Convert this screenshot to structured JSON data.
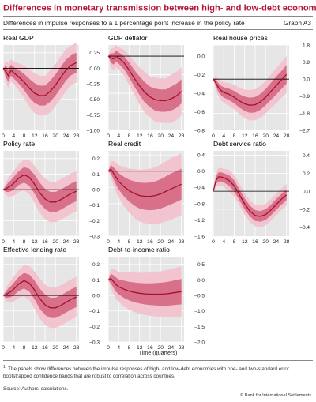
{
  "header": {
    "title": "Differences in monetary transmission between high- and low-debt economies",
    "title_sup": "1",
    "subtitle": "Differences in impulse responses to a 1 percentage point increase in the policy rate",
    "graph_id": "Graph A3"
  },
  "common_xlabel": "Time (quarters)",
  "footnote": {
    "marker": "1",
    "text": "The panels show differences between the impulse responses of high- and low-debt economies with one- and two-standard error bootstrapped confidence bands that are robust to correlation across countries."
  },
  "source": "Source: Authors' calculations.",
  "copyright": "© Bank for International Settlements",
  "colors": {
    "outer_band": "#f2c4cf",
    "inner_band": "#d8708a",
    "line": "#a3112f",
    "zero_line": "#000000",
    "panel_bg": "#e6e6e6",
    "title_red": "#b5163c"
  },
  "chart_data": [
    {
      "type": "line",
      "title": "Real GDP",
      "x_ticks": [
        "0",
        "4",
        "8",
        "12",
        "16",
        "20",
        "24",
        "28"
      ],
      "y_ticks": [
        "0.25",
        "0.00",
        "–0.25",
        "–0.50",
        "–0.75",
        "–1.00"
      ],
      "ylim": [
        -1.0,
        0.375
      ],
      "x": [
        0,
        1,
        2,
        3,
        4,
        6,
        8,
        10,
        12,
        14,
        16,
        18,
        20,
        22,
        24,
        26,
        28
      ],
      "series": [
        {
          "role": "point_estimate",
          "values": [
            0,
            -0.05,
            -0.12,
            -0.03,
            -0.07,
            -0.14,
            -0.22,
            -0.32,
            -0.4,
            -0.44,
            -0.44,
            -0.37,
            -0.27,
            -0.15,
            -0.03,
            0.05,
            0.09
          ]
        }
      ],
      "inner_band": {
        "lower": [
          0,
          -0.14,
          -0.22,
          -0.12,
          -0.16,
          -0.25,
          -0.35,
          -0.47,
          -0.56,
          -0.6,
          -0.6,
          -0.54,
          -0.44,
          -0.32,
          -0.2,
          -0.11,
          -0.07
        ],
        "upper": [
          0,
          0.04,
          -0.02,
          0.06,
          0.02,
          -0.03,
          -0.09,
          -0.17,
          -0.24,
          -0.28,
          -0.28,
          -0.2,
          -0.1,
          0.02,
          0.14,
          0.21,
          0.25
        ]
      },
      "outer_band": {
        "lower": [
          0,
          -0.23,
          -0.32,
          -0.21,
          -0.25,
          -0.36,
          -0.48,
          -0.62,
          -0.72,
          -0.76,
          -0.76,
          -0.71,
          -0.61,
          -0.49,
          -0.37,
          -0.27,
          -0.23
        ],
        "upper": [
          0,
          0.13,
          0.08,
          0.15,
          0.11,
          0.08,
          0.04,
          -0.02,
          -0.08,
          -0.12,
          -0.12,
          -0.03,
          0.07,
          0.19,
          0.31,
          0.37,
          0.41
        ]
      }
    },
    {
      "type": "line",
      "title": "GDP deflator",
      "x_ticks": [
        "0",
        "4",
        "8",
        "12",
        "16",
        "20",
        "24",
        "28"
      ],
      "y_ticks": [
        "0.0",
        "–0.2",
        "–0.4",
        "–0.6",
        "–0.8"
      ],
      "ylim": [
        -0.8,
        0.12
      ],
      "x": [
        0,
        1,
        2,
        3,
        4,
        6,
        8,
        10,
        12,
        14,
        16,
        18,
        20,
        22,
        24,
        26,
        28
      ],
      "series": [
        {
          "role": "point_estimate",
          "values": [
            0,
            -0.02,
            -0.03,
            0.0,
            -0.02,
            -0.07,
            -0.15,
            -0.24,
            -0.32,
            -0.39,
            -0.44,
            -0.47,
            -0.48,
            -0.48,
            -0.46,
            -0.43,
            -0.38
          ]
        }
      ],
      "inner_band": {
        "lower": [
          0,
          -0.07,
          -0.09,
          -0.06,
          -0.08,
          -0.14,
          -0.23,
          -0.33,
          -0.42,
          -0.5,
          -0.55,
          -0.59,
          -0.6,
          -0.6,
          -0.59,
          -0.56,
          -0.51
        ],
        "upper": [
          0,
          0.03,
          0.03,
          0.06,
          0.04,
          0.0,
          -0.07,
          -0.15,
          -0.22,
          -0.28,
          -0.33,
          -0.35,
          -0.36,
          -0.36,
          -0.33,
          -0.3,
          -0.25
        ]
      },
      "outer_band": {
        "lower": [
          0,
          -0.12,
          -0.15,
          -0.12,
          -0.14,
          -0.21,
          -0.31,
          -0.42,
          -0.52,
          -0.61,
          -0.66,
          -0.71,
          -0.72,
          -0.72,
          -0.72,
          -0.69,
          -0.64
        ],
        "upper": [
          0,
          0.08,
          0.09,
          0.12,
          0.1,
          0.07,
          0.01,
          -0.06,
          -0.12,
          -0.17,
          -0.22,
          -0.23,
          -0.24,
          -0.24,
          -0.2,
          -0.17,
          -0.12
        ]
      }
    },
    {
      "type": "line",
      "title": "Real house prices",
      "x_ticks": [
        "0",
        "4",
        "8",
        "12",
        "16",
        "20",
        "24",
        "28"
      ],
      "y_ticks": [
        "1.8",
        "0.9",
        "0.0",
        "–0.9",
        "–1.8",
        "–2.7"
      ],
      "ylim": [
        -2.7,
        1.8
      ],
      "x": [
        0,
        1,
        2,
        3,
        4,
        6,
        8,
        10,
        12,
        14,
        16,
        18,
        20,
        22,
        24,
        26,
        28
      ],
      "series": [
        {
          "role": "point_estimate",
          "values": [
            0,
            -0.2,
            -0.45,
            -0.6,
            -0.7,
            -0.8,
            -0.95,
            -1.15,
            -1.3,
            -1.38,
            -1.35,
            -1.2,
            -0.95,
            -0.65,
            -0.35,
            -0.05,
            0.25
          ]
        }
      ],
      "inner_band": {
        "lower": [
          0,
          -0.38,
          -0.68,
          -0.85,
          -0.97,
          -1.1,
          -1.28,
          -1.5,
          -1.68,
          -1.78,
          -1.76,
          -1.62,
          -1.38,
          -1.1,
          -0.82,
          -0.52,
          -0.24
        ],
        "upper": [
          0,
          -0.02,
          -0.22,
          -0.35,
          -0.43,
          -0.5,
          -0.62,
          -0.8,
          -0.92,
          -0.98,
          -0.94,
          -0.78,
          -0.52,
          -0.2,
          0.12,
          0.42,
          0.74
        ]
      },
      "outer_band": {
        "lower": [
          0,
          -0.56,
          -0.9,
          -1.1,
          -1.24,
          -1.4,
          -1.6,
          -1.85,
          -2.05,
          -2.18,
          -2.17,
          -2.04,
          -1.81,
          -1.54,
          -1.28,
          -0.98,
          -0.72
        ],
        "upper": [
          0,
          0.16,
          0.0,
          -0.1,
          -0.16,
          -0.2,
          -0.3,
          -0.45,
          -0.55,
          -0.58,
          -0.53,
          -0.36,
          -0.09,
          0.24,
          0.58,
          0.88,
          1.22
        ]
      }
    },
    {
      "type": "line",
      "title": "Policy rate",
      "x_ticks": [
        "0",
        "4",
        "8",
        "12",
        "16",
        "20",
        "24",
        "28"
      ],
      "y_ticks": [
        "0.2",
        "0.1",
        "0.0",
        "–0.1",
        "–0.2",
        "–0.3"
      ],
      "ylim": [
        -0.3,
        0.25
      ],
      "x": [
        0,
        1,
        2,
        3,
        4,
        6,
        8,
        10,
        12,
        14,
        16,
        18,
        20,
        22,
        24,
        26,
        28
      ],
      "series": [
        {
          "role": "point_estimate",
          "values": [
            0,
            0.005,
            0.015,
            0.025,
            0.04,
            0.075,
            0.095,
            0.08,
            0.035,
            -0.02,
            -0.06,
            -0.08,
            -0.08,
            -0.065,
            -0.045,
            -0.025,
            -0.01
          ]
        }
      ],
      "inner_band": {
        "lower": [
          0,
          -0.015,
          -0.015,
          -0.01,
          0.0,
          0.03,
          0.045,
          0.025,
          -0.025,
          -0.085,
          -0.125,
          -0.145,
          -0.145,
          -0.13,
          -0.11,
          -0.09,
          -0.075
        ],
        "upper": [
          0,
          0.025,
          0.045,
          0.06,
          0.08,
          0.12,
          0.145,
          0.135,
          0.095,
          0.045,
          0.005,
          -0.015,
          -0.015,
          0.0,
          0.02,
          0.04,
          0.055
        ]
      },
      "outer_band": {
        "lower": [
          0,
          -0.035,
          -0.045,
          -0.045,
          -0.04,
          -0.015,
          -0.005,
          -0.03,
          -0.085,
          -0.15,
          -0.19,
          -0.21,
          -0.21,
          -0.195,
          -0.175,
          -0.155,
          -0.14
        ],
        "upper": [
          0,
          0.045,
          0.075,
          0.095,
          0.12,
          0.165,
          0.195,
          0.19,
          0.155,
          0.11,
          0.07,
          0.05,
          0.05,
          0.065,
          0.085,
          0.105,
          0.12
        ]
      }
    },
    {
      "type": "line",
      "title": "Real credit",
      "x_ticks": [
        "0",
        "4",
        "8",
        "12",
        "16",
        "20",
        "24",
        "28"
      ],
      "y_ticks": [
        "0.4",
        "0.0",
        "–0.4",
        "–0.8",
        "–1.2",
        "–1.6"
      ],
      "ylim": [
        -1.6,
        0.5
      ],
      "x": [
        0,
        1,
        2,
        3,
        4,
        6,
        8,
        10,
        12,
        14,
        16,
        18,
        20,
        22,
        24,
        26,
        28
      ],
      "series": [
        {
          "role": "point_estimate",
          "values": [
            0,
            0.05,
            -0.05,
            -0.15,
            -0.25,
            -0.38,
            -0.48,
            -0.55,
            -0.6,
            -0.62,
            -0.62,
            -0.6,
            -0.56,
            -0.5,
            -0.44,
            -0.38,
            -0.32
          ]
        }
      ],
      "inner_band": {
        "lower": [
          0,
          -0.05,
          -0.2,
          -0.33,
          -0.45,
          -0.62,
          -0.75,
          -0.85,
          -0.92,
          -0.95,
          -0.96,
          -0.95,
          -0.92,
          -0.87,
          -0.82,
          -0.76,
          -0.7
        ],
        "upper": [
          0,
          0.15,
          0.1,
          0.03,
          -0.05,
          -0.14,
          -0.21,
          -0.25,
          -0.28,
          -0.29,
          -0.28,
          -0.25,
          -0.2,
          -0.13,
          -0.06,
          0.0,
          0.06
        ]
      },
      "outer_band": {
        "lower": [
          0,
          -0.15,
          -0.35,
          -0.51,
          -0.65,
          -0.86,
          -1.02,
          -1.15,
          -1.24,
          -1.28,
          -1.3,
          -1.3,
          -1.28,
          -1.24,
          -1.2,
          -1.14,
          -1.08
        ],
        "upper": [
          0,
          0.25,
          0.25,
          0.21,
          0.15,
          0.1,
          0.06,
          0.05,
          0.04,
          0.04,
          0.06,
          0.1,
          0.16,
          0.24,
          0.32,
          0.38,
          0.44
        ]
      }
    },
    {
      "type": "line",
      "title": "Debt service ratio",
      "x_ticks": [
        "0",
        "4",
        "8",
        "12",
        "16",
        "20",
        "24",
        "28"
      ],
      "y_ticks": [
        "0.4",
        "0.2",
        "0.0",
        "–0.2",
        "–0.4"
      ],
      "ylim": [
        -0.5,
        0.45
      ],
      "x": [
        0,
        1,
        2,
        3,
        4,
        6,
        8,
        10,
        12,
        14,
        16,
        18,
        20,
        22,
        24,
        26,
        28
      ],
      "series": [
        {
          "role": "point_estimate",
          "values": [
            0,
            0.12,
            0.16,
            0.16,
            0.15,
            0.12,
            0.06,
            -0.04,
            -0.14,
            -0.22,
            -0.27,
            -0.28,
            -0.26,
            -0.21,
            -0.15,
            -0.09,
            -0.04
          ]
        }
      ],
      "inner_band": {
        "lower": [
          0,
          0.08,
          0.11,
          0.11,
          0.1,
          0.06,
          0.0,
          -0.1,
          -0.2,
          -0.28,
          -0.33,
          -0.34,
          -0.32,
          -0.27,
          -0.21,
          -0.15,
          -0.1
        ],
        "upper": [
          0,
          0.16,
          0.21,
          0.21,
          0.2,
          0.18,
          0.12,
          0.02,
          -0.08,
          -0.16,
          -0.21,
          -0.22,
          -0.2,
          -0.15,
          -0.09,
          -0.03,
          0.02
        ]
      },
      "outer_band": {
        "lower": [
          0,
          0.04,
          0.06,
          0.06,
          0.05,
          0.0,
          -0.06,
          -0.16,
          -0.26,
          -0.34,
          -0.39,
          -0.4,
          -0.38,
          -0.33,
          -0.27,
          -0.21,
          -0.16
        ],
        "upper": [
          0,
          0.2,
          0.26,
          0.26,
          0.25,
          0.24,
          0.18,
          0.08,
          -0.02,
          -0.1,
          -0.15,
          -0.16,
          -0.14,
          -0.09,
          -0.03,
          0.03,
          0.08
        ]
      }
    },
    {
      "type": "line",
      "title": "Effective lending rate",
      "x_ticks": [
        "0",
        "4",
        "8",
        "12",
        "16",
        "20",
        "24",
        "28"
      ],
      "y_ticks": [
        "0.2",
        "0.1",
        "0.0",
        "–0.1",
        "–0.2",
        "–0.3"
      ],
      "ylim": [
        -0.3,
        0.25
      ],
      "x": [
        0,
        1,
        2,
        3,
        4,
        6,
        8,
        10,
        12,
        14,
        16,
        18,
        20,
        22,
        24,
        26,
        28
      ],
      "series": [
        {
          "role": "point_estimate",
          "values": [
            0,
            0.005,
            0.015,
            0.025,
            0.04,
            0.075,
            0.095,
            0.08,
            0.035,
            -0.02,
            -0.06,
            -0.08,
            -0.08,
            -0.065,
            -0.045,
            -0.025,
            -0.01
          ]
        }
      ],
      "inner_band": {
        "lower": [
          0,
          -0.015,
          -0.015,
          -0.01,
          0.0,
          0.03,
          0.045,
          0.025,
          -0.025,
          -0.085,
          -0.125,
          -0.145,
          -0.145,
          -0.13,
          -0.11,
          -0.09,
          -0.075
        ],
        "upper": [
          0,
          0.025,
          0.045,
          0.06,
          0.08,
          0.12,
          0.145,
          0.135,
          0.095,
          0.045,
          0.005,
          -0.015,
          -0.015,
          0.0,
          0.02,
          0.04,
          0.055
        ]
      },
      "outer_band": {
        "lower": [
          0,
          -0.035,
          -0.045,
          -0.045,
          -0.04,
          -0.015,
          -0.005,
          -0.03,
          -0.085,
          -0.15,
          -0.19,
          -0.21,
          -0.21,
          -0.195,
          -0.175,
          -0.155,
          -0.14
        ],
        "upper": [
          0,
          0.045,
          0.075,
          0.095,
          0.12,
          0.165,
          0.195,
          0.19,
          0.155,
          0.11,
          0.07,
          0.05,
          0.05,
          0.065,
          0.085,
          0.105,
          0.12
        ]
      }
    },
    {
      "type": "line",
      "title": "Debt-to-income ratio",
      "x_ticks": [
        "0",
        "4",
        "8",
        "12",
        "16",
        "20",
        "24",
        "28"
      ],
      "y_ticks": [
        "0.5",
        "0.0",
        "–0.5",
        "–1.0",
        "–1.5",
        "–2.0"
      ],
      "ylim": [
        -2.0,
        0.75
      ],
      "x": [
        0,
        1,
        2,
        3,
        4,
        6,
        8,
        10,
        12,
        14,
        16,
        18,
        20,
        22,
        24,
        26,
        28
      ],
      "series": [
        {
          "role": "point_estimate",
          "values": [
            0,
            0.05,
            -0.05,
            -0.15,
            -0.22,
            -0.3,
            -0.36,
            -0.4,
            -0.43,
            -0.45,
            -0.46,
            -0.46,
            -0.46,
            -0.45,
            -0.43,
            -0.4,
            -0.38
          ]
        }
      ],
      "inner_band": {
        "lower": [
          0,
          -0.1,
          -0.25,
          -0.38,
          -0.46,
          -0.58,
          -0.66,
          -0.72,
          -0.76,
          -0.79,
          -0.81,
          -0.82,
          -0.83,
          -0.83,
          -0.82,
          -0.8,
          -0.79
        ],
        "upper": [
          0,
          0.2,
          0.15,
          0.08,
          0.02,
          -0.02,
          -0.06,
          -0.08,
          -0.1,
          -0.11,
          -0.11,
          -0.1,
          -0.09,
          -0.07,
          -0.04,
          0.0,
          0.03
        ]
      },
      "outer_band": {
        "lower": [
          0,
          -0.25,
          -0.45,
          -0.61,
          -0.7,
          -0.86,
          -0.96,
          -1.04,
          -1.09,
          -1.13,
          -1.16,
          -1.18,
          -1.2,
          -1.21,
          -1.21,
          -1.2,
          -1.2
        ],
        "upper": [
          0,
          0.35,
          0.35,
          0.31,
          0.26,
          0.26,
          0.24,
          0.24,
          0.23,
          0.23,
          0.24,
          0.26,
          0.28,
          0.31,
          0.35,
          0.4,
          0.44
        ]
      }
    }
  ]
}
